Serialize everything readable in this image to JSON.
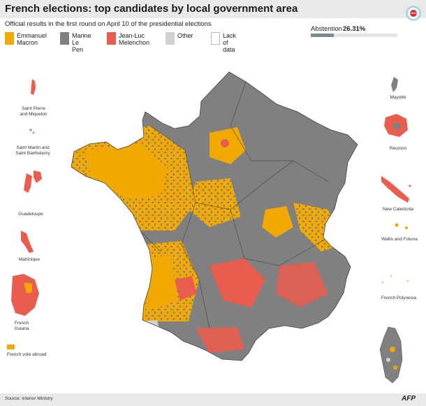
{
  "title": "French elections: top candidates by local government area",
  "subtitle": "Official results in the first round on April 10 of the presidential elections",
  "badge_text": "2022",
  "colors": {
    "macron": "#f1a800",
    "le_pen": "#808080",
    "melenchon": "#ea5c4e",
    "other": "#d0d0d0",
    "lack_of_data": "#ffffff"
  },
  "legend": [
    {
      "label": "Emmanuel\nMacron",
      "color": "#f1a800"
    },
    {
      "label": "Marine\nLe Pen",
      "color": "#808080"
    },
    {
      "label": "Jean-Luc\nMelenchon",
      "color": "#ea5c4e"
    },
    {
      "label": "Other",
      "color": "#d0d0d0"
    },
    {
      "label": "Lack\nof data",
      "color": "#ffffff"
    }
  ],
  "abstention": {
    "label": "Abstention",
    "value_text": "26.31%",
    "value": 26.31
  },
  "territories": {
    "saint_pierre": "Saint Pierre\nand Miquelon",
    "saint_martin": "Saint Martin and\nSaint Barthelemy",
    "guadeloupe": "Guadeloupe",
    "martinique": "Martinique",
    "guiana": "French\nGuiana",
    "mayotte": "Mayotte",
    "reunion": "Reunion",
    "new_caledonia": "New Caledonia",
    "wallis": "Wallis and Futuna",
    "polynesia": "French Polynesia"
  },
  "abroad_label": "French vote abroad",
  "source": "Source: Interior Ministry",
  "logo_text": "AFP"
}
